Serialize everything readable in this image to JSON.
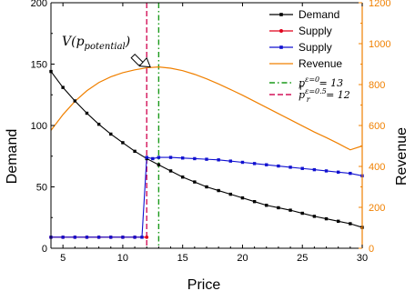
{
  "chart_data": {
    "type": "line",
    "xlabel": "Price",
    "ylabel_left": "Demand",
    "ylabel_right": "Revenue",
    "xlim": [
      4,
      30
    ],
    "ylim_left": [
      0,
      200
    ],
    "ylim_right": [
      0,
      1200
    ],
    "x_ticks": [
      5,
      10,
      15,
      20,
      25,
      30
    ],
    "y_left_ticks": [
      0,
      50,
      100,
      150,
      200
    ],
    "y_right_ticks": [
      0,
      200,
      400,
      600,
      800,
      1000,
      1200
    ],
    "grid": false,
    "legend_position": "top-right",
    "colors": {
      "demand": "#000000",
      "supply_red": "#e0001b",
      "supply_blue": "#1010d0",
      "revenue": "#f08000",
      "p0_line": "#1a9a1a",
      "pr_line": "#d4145a",
      "right_axis": "#f08000"
    },
    "annotation": {
      "text": "V(p_potential)",
      "x": 12.3,
      "y_revenue": 886
    },
    "vlines": [
      {
        "name": "p_r^{ε=0}=13",
        "x": 13,
        "style": "dash-dot",
        "color_key": "p0_line"
      },
      {
        "name": "p_r^{ε=0.5}=12",
        "x": 12,
        "style": "dashed",
        "color_key": "pr_line"
      }
    ],
    "series": [
      {
        "name": "Demand",
        "axis": "left",
        "marker": "square",
        "x": [
          4,
          5,
          6,
          7,
          8,
          9,
          10,
          11,
          12,
          13,
          14,
          15,
          16,
          17,
          18,
          19,
          20,
          21,
          22,
          23,
          24,
          25,
          26,
          27,
          28,
          29,
          30
        ],
        "values": [
          144,
          131,
          120,
          110,
          101,
          93,
          86,
          79,
          73,
          68,
          63,
          58,
          54,
          50,
          47,
          44,
          41,
          38,
          35,
          33,
          31,
          28.5,
          26,
          24,
          22,
          20,
          17
        ]
      },
      {
        "name": "Supply",
        "axis": "left",
        "marker": "circle",
        "color_key": "supply_red",
        "x": [
          4,
          5,
          6,
          7,
          8,
          9,
          10,
          11,
          12
        ],
        "values": [
          9,
          9,
          9,
          9,
          9,
          9,
          9,
          9,
          9
        ]
      },
      {
        "name": "Supply",
        "axis": "left",
        "marker": "square",
        "color_key": "supply_blue",
        "x": [
          4,
          5,
          6,
          7,
          8,
          9,
          10,
          11,
          11.6,
          12,
          12.5,
          13,
          14,
          15,
          16,
          17,
          18,
          19,
          20,
          21,
          22,
          23,
          24,
          25,
          26,
          27,
          28,
          29,
          30
        ],
        "values": [
          9,
          9,
          9,
          9,
          9,
          9,
          9,
          9,
          9,
          74,
          73,
          74,
          74,
          73.5,
          73,
          72.5,
          72,
          71,
          70,
          69,
          68,
          67,
          66,
          65,
          64,
          63,
          62,
          61,
          59
        ]
      },
      {
        "name": "Revenue",
        "axis": "right",
        "marker": "none",
        "x": [
          4,
          5,
          6,
          7,
          8,
          9,
          10,
          11,
          12,
          13,
          14,
          15,
          16,
          17,
          18,
          19,
          20,
          21,
          22,
          23,
          24,
          25,
          26,
          27,
          28,
          29,
          30
        ],
        "values": [
          576,
          653,
          718,
          770,
          810,
          838,
          858,
          872,
          882,
          886,
          880,
          868,
          850,
          828,
          803,
          776,
          748,
          718,
          688,
          658,
          628,
          598,
          568,
          541,
          512,
          481,
          500
        ]
      }
    ],
    "legend": [
      {
        "label": "Demand",
        "key": "demand"
      },
      {
        "label": "Supply",
        "key": "supply_red"
      },
      {
        "label": "Supply",
        "key": "supply_blue"
      },
      {
        "label": "Revenue",
        "key": "revenue"
      },
      {
        "label_base": "p",
        "label_sup": "ε=0",
        "label_sub": "r",
        "label_tail": " = 13",
        "key": "p0_line"
      },
      {
        "label_base": "p",
        "label_sup": "ε=0.5",
        "label_sub": "r",
        "label_tail": " = 12",
        "key": "pr_line"
      }
    ]
  }
}
